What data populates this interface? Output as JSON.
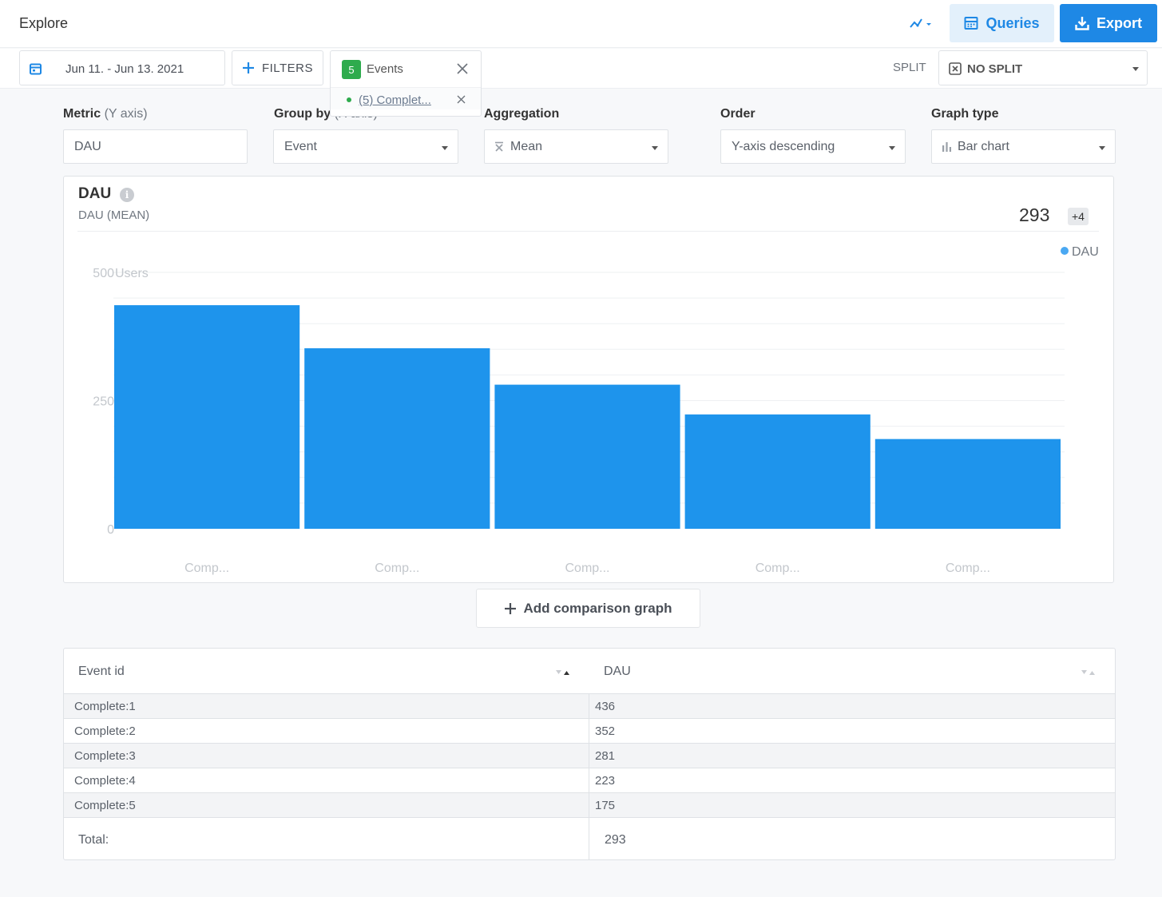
{
  "header": {
    "title": "Explore",
    "queries_label": "Queries",
    "export_label": "Export"
  },
  "toolbar": {
    "date_range": "Jun 11. - Jun 13. 2021",
    "filters_label": "FILTERS",
    "events": {
      "count": "5",
      "label": "Events",
      "selected_event": "(5) Complet..."
    },
    "split_label": "SPLIT",
    "split_value": "NO SPLIT"
  },
  "controls": {
    "metric": {
      "label": "Metric",
      "sub": "(Y axis)",
      "value": "DAU"
    },
    "group_by": {
      "label": "Group by",
      "sub": "(X axis)",
      "value": "Event"
    },
    "aggregation": {
      "label": "Aggregation",
      "value": "Mean"
    },
    "order": {
      "label": "Order",
      "value": "Y-axis descending"
    },
    "graph_type": {
      "label": "Graph type",
      "value": "Bar chart"
    }
  },
  "chart_card": {
    "title": "DAU",
    "subtitle": "DAU (MEAN)",
    "total": "293",
    "more_badge": "+4"
  },
  "chart_data": {
    "type": "bar",
    "categories": [
      "Comp...",
      "Comp...",
      "Comp...",
      "Comp...",
      "Comp..."
    ],
    "values": [
      436,
      352,
      281,
      223,
      175
    ],
    "series": [
      {
        "name": "DAU",
        "values": [
          436,
          352,
          281,
          223,
          175
        ]
      }
    ],
    "ylabel": "Users",
    "y_ticks": [
      "0",
      "250",
      "500"
    ],
    "ylim": [
      0,
      500
    ],
    "legend": "top-right",
    "grid": true,
    "color": "#1e94ec"
  },
  "add_comparison_label": "Add comparison graph",
  "table": {
    "columns": [
      "Event id",
      "DAU"
    ],
    "rows": [
      {
        "event": "Complete:1",
        "dau": "436"
      },
      {
        "event": "Complete:2",
        "dau": "352"
      },
      {
        "event": "Complete:3",
        "dau": "281"
      },
      {
        "event": "Complete:4",
        "dau": "223"
      },
      {
        "event": "Complete:5",
        "dau": "175"
      }
    ],
    "total_label": "Total:",
    "total_value": "293"
  },
  "colors": {
    "accent": "#1e88e5",
    "bar": "#1e94ec",
    "badge_green": "#2eab4d"
  }
}
